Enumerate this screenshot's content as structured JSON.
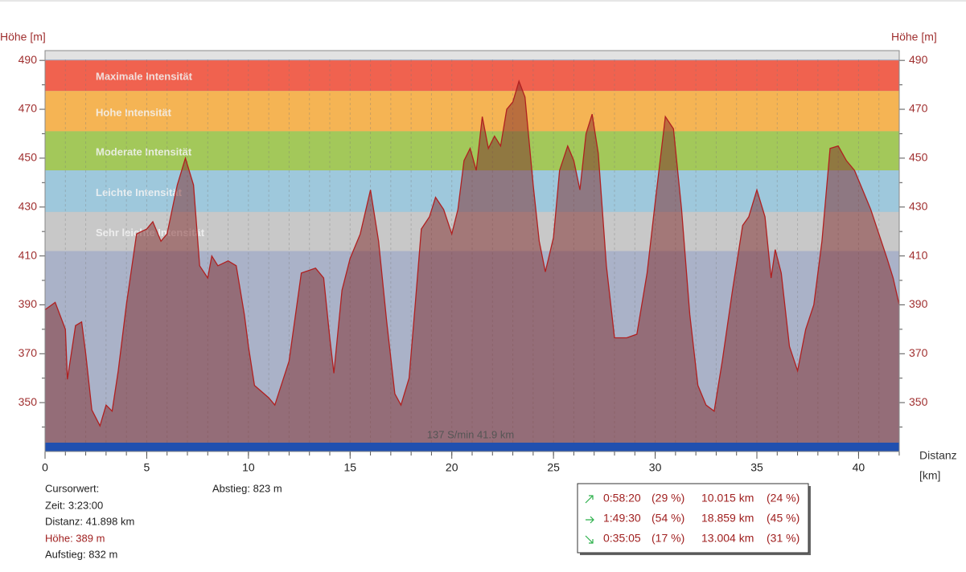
{
  "chart_data": {
    "type": "area",
    "y_label": "Höhe [m]",
    "x_label": [
      "Distanz",
      "[km]"
    ],
    "xlim": [
      0,
      42
    ],
    "xticks": [
      0,
      5,
      10,
      15,
      20,
      25,
      30,
      35,
      40
    ],
    "ylim": [
      330,
      494
    ],
    "yticks": [
      350,
      370,
      390,
      410,
      430,
      450,
      470,
      490
    ],
    "grid": true,
    "color": "#b02020",
    "zones": [
      {
        "name": "Maximale Intensität",
        "from": 477.5,
        "to": 490,
        "color": "#f0624f"
      },
      {
        "name": "Hohe Intensität",
        "from": 461,
        "to": 477.5,
        "color": "#f5b454"
      },
      {
        "name": "Moderate Intensität",
        "from": 445,
        "to": 461,
        "color": "#a3c85a"
      },
      {
        "name": "Leichte Intensität",
        "from": 428,
        "to": 445,
        "color": "#9ec8dc"
      },
      {
        "name": "Sehr leichte Intensität",
        "from": 412,
        "to": 428,
        "color": "#c8c8c8"
      }
    ],
    "x": [
      0,
      0.5,
      1,
      1.1,
      1.5,
      1.8,
      2,
      2.3,
      2.7,
      3,
      3.3,
      3.6,
      4,
      4.5,
      5,
      5.3,
      5.7,
      6,
      6.5,
      6.9,
      7.3,
      7.6,
      8,
      8.2,
      8.5,
      9,
      9.4,
      9.8,
      10,
      10.3,
      11,
      11.3,
      12,
      12.6,
      13.3,
      13.7,
      14,
      14.2,
      14.6,
      15,
      15.5,
      16,
      16.4,
      16.8,
      17.2,
      17.5,
      17.9,
      18.2,
      18.5,
      18.9,
      19.2,
      19.6,
      20,
      20.3,
      20.6,
      20.9,
      21.2,
      21.5,
      21.8,
      22.1,
      22.4,
      22.7,
      23,
      23.3,
      23.6,
      24,
      24.3,
      24.6,
      25,
      25.3,
      25.7,
      26,
      26.3,
      26.6,
      26.9,
      27.2,
      27.6,
      28,
      28.6,
      29.1,
      29.6,
      30,
      30.5,
      30.9,
      31.3,
      31.7,
      32.1,
      32.5,
      32.9,
      33.3,
      33.8,
      34.3,
      34.6,
      35,
      35.4,
      35.7,
      35.9,
      36.2,
      36.6,
      37,
      37.4,
      37.8,
      38.2,
      38.6,
      39,
      39.4,
      39.8,
      40.2,
      40.6,
      41,
      41.4,
      41.7,
      42
    ],
    "values": [
      388,
      391,
      380,
      359.5,
      381.5,
      383,
      370,
      347,
      340.5,
      349,
      346.5,
      363,
      390,
      419,
      421,
      424,
      416,
      419,
      439,
      450,
      439,
      406,
      401,
      410,
      406,
      408,
      406,
      386,
      373,
      357,
      352,
      349,
      367,
      403,
      405,
      401,
      376.5,
      362,
      396,
      409,
      419,
      437,
      416,
      383,
      353.6,
      349,
      360,
      390,
      421,
      426,
      434,
      429,
      419,
      429,
      449,
      454,
      445,
      467,
      454,
      459,
      455,
      470,
      473,
      481.5,
      475,
      439,
      416,
      403.5,
      417.5,
      445,
      455,
      449,
      437,
      460,
      468,
      452,
      406,
      376.5,
      376.5,
      378,
      403,
      432,
      467,
      462,
      429,
      386,
      357,
      349,
      346.5,
      367,
      396,
      422.5,
      426,
      437,
      426,
      401,
      412.6,
      403,
      373,
      363,
      380,
      390,
      416,
      454,
      455,
      449,
      445,
      437,
      429,
      419,
      409,
      401,
      390
    ],
    "bar_text": "137 S/min 41.9 km"
  },
  "cursor": {
    "title": "Cursorwert:",
    "zeit": "Zeit: 3:23:00",
    "distanz": "Distanz: 41.898 km",
    "hoehe": "Höhe:  389 m",
    "aufstieg": "Aufstieg: 832 m",
    "abstieg": "Abstieg: 823 m"
  },
  "summary": {
    "rows": [
      [
        "0:58:20",
        "(29 %)",
        "10.015 km",
        "(24 %)"
      ],
      [
        "1:49:30",
        "(54 %)",
        "18.859 km",
        "(45 %)"
      ],
      [
        "0:35:05",
        "(17 %)",
        "13.004 km",
        "(31 %)"
      ]
    ]
  }
}
